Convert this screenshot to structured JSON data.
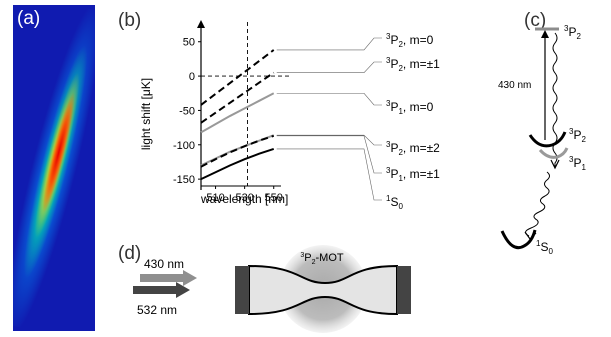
{
  "panels": {
    "a": "(a)",
    "b": "(b)",
    "c": "(c)",
    "d": "(d)"
  },
  "chart_data": {
    "type": "line",
    "xlabel": "wavelength [nm]",
    "ylabel": "light shift [μK]",
    "xlim": [
      500,
      555
    ],
    "ylim": [
      -160,
      70
    ],
    "xticks": [
      510,
      530,
      550
    ],
    "yticks": [
      50,
      0,
      -50,
      -100,
      -150
    ],
    "vline_x": 532,
    "hline_y": 0,
    "series": [
      {
        "name": "3P2, m=0",
        "label_sup": "3",
        "label_main": "P",
        "label_sub": "2",
        "label_rest": ", m=0",
        "style": "dashed",
        "color": "#000000",
        "x": [
          500,
          550
        ],
        "y": [
          -42,
          38
        ]
      },
      {
        "name": "3P2, m=±1",
        "label_sup": "3",
        "label_main": "P",
        "label_sub": "2",
        "label_rest": ", m=±1",
        "style": "dashed",
        "color": "#000000",
        "x": [
          500,
          550
        ],
        "y": [
          -68,
          5
        ]
      },
      {
        "name": "3P1, m=0",
        "label_sup": "3",
        "label_main": "P",
        "label_sub": "1",
        "label_rest": ", m=0",
        "style": "solid",
        "color": "#999999",
        "x": [
          500,
          510,
          520,
          530,
          540,
          550
        ],
        "y": [
          -82,
          -70,
          -58,
          -47,
          -36,
          -25
        ]
      },
      {
        "name": "3P2, m=±2",
        "label_sup": "3",
        "label_main": "P",
        "label_sub": "2",
        "label_rest": ", m=±2",
        "style": "solid",
        "color": "#999999",
        "x": [
          500,
          510,
          520,
          530,
          540,
          550
        ],
        "y": [
          -130,
          -120,
          -110,
          -102,
          -94,
          -86
        ]
      },
      {
        "name": "3P1, m=±1",
        "label_sup": "3",
        "label_main": "P",
        "label_sub": "1",
        "label_rest": ", m=±1",
        "style": "dashed",
        "color": "#000000",
        "x": [
          500,
          510,
          520,
          530,
          540,
          550
        ],
        "y": [
          -132,
          -121,
          -111,
          -102,
          -94,
          -87
        ]
      },
      {
        "name": "1S0",
        "label_sup": "1",
        "label_main": "S",
        "label_sub": "0",
        "label_rest": "",
        "style": "solid",
        "color": "#000000",
        "x": [
          500,
          510,
          520,
          530,
          540,
          550
        ],
        "y": [
          -150,
          -140,
          -130,
          -121,
          -113,
          -106
        ]
      }
    ]
  },
  "levels": {
    "top": {
      "sup": "3",
      "main": "P",
      "sub": "2"
    },
    "mid": {
      "sup": "3",
      "main": "P",
      "sub": "2"
    },
    "p1": {
      "sup": "3",
      "main": "P",
      "sub": "1"
    },
    "ground": {
      "sup": "1",
      "main": "S",
      "sub": "0"
    },
    "transition": "430 nm"
  },
  "setup": {
    "beam_upper": "430 nm",
    "beam_lower": "532 nm",
    "mot_sup": "3",
    "mot_main": "P",
    "mot_sub": "2",
    "mot_rest": "-MOT"
  }
}
